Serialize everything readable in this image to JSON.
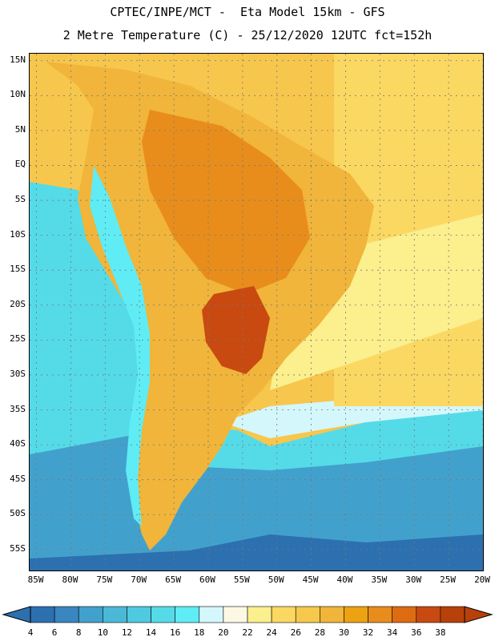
{
  "header": {
    "line1": "CPTEC/INPE/MCT -  Eta Model 15km - GFS",
    "line2": "2 Metre Temperature (C) - 25/12/2020 12UTC fct=152h"
  },
  "map": {
    "lat_labels": [
      "15N",
      "10N",
      "5N",
      "EQ",
      "5S",
      "10S",
      "15S",
      "20S",
      "25S",
      "30S",
      "35S",
      "40S",
      "45S",
      "50S",
      "55S"
    ],
    "lon_labels": [
      "85W",
      "80W",
      "75W",
      "70W",
      "65W",
      "60W",
      "55W",
      "50W",
      "45W",
      "40W",
      "35W",
      "30W",
      "25W",
      "20W"
    ],
    "lon_range_deg": [
      -86,
      -20
    ],
    "lat_range_deg": [
      16,
      -58
    ]
  },
  "colorbar": {
    "values": [
      4,
      6,
      8,
      10,
      12,
      14,
      16,
      18,
      20,
      22,
      24,
      26,
      28,
      30,
      32,
      34,
      36,
      38
    ],
    "colors": [
      "#2c70b0",
      "#3986c0",
      "#42a1cc",
      "#4ab9d8",
      "#4fc9e0",
      "#55dbe8",
      "#5fecf5",
      "#d4f7fc",
      "#fdf8e4",
      "#fbef8e",
      "#fad862",
      "#f6c84c",
      "#f0b53a",
      "#eca212",
      "#e88d1c",
      "#dd6b12",
      "#c84a10",
      "#b8400a"
    ]
  },
  "regions": [
    {
      "name": "southern-pacific",
      "color": "#2c70b0"
    },
    {
      "name": "mid-pacific",
      "color": "#42a1cc"
    },
    {
      "name": "cool-ocean",
      "color": "#55dbe8"
    },
    {
      "name": "warm-ocean",
      "color": "#fad862"
    },
    {
      "name": "continent",
      "color": "#f0b53a"
    },
    {
      "name": "amazon-hot",
      "color": "#e88d1c"
    },
    {
      "name": "central-hot",
      "color": "#c84a10"
    }
  ]
}
